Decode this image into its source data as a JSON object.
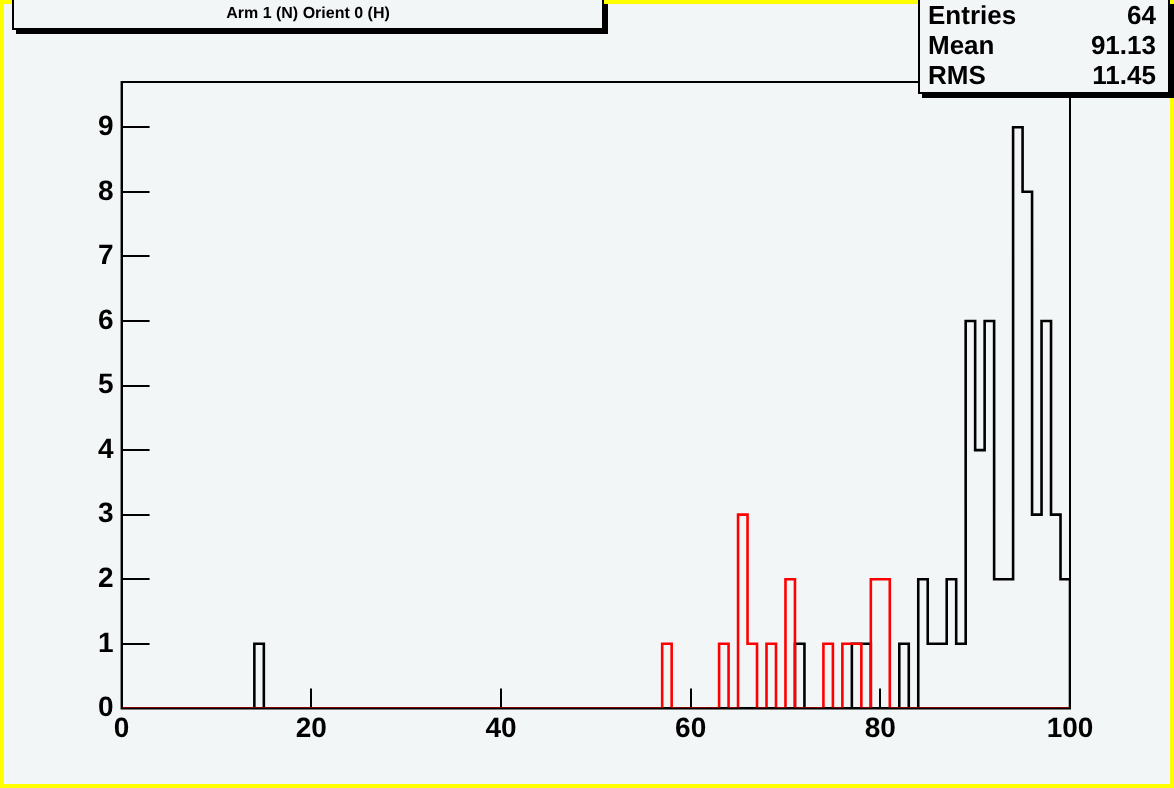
{
  "chart_data": {
    "type": "histogram",
    "title": "Arm 1 (N) Orient 0 (H)",
    "bins": [
      0,
      1,
      2,
      3,
      4,
      5,
      6,
      7,
      8,
      9,
      10,
      11,
      12,
      13,
      14,
      15,
      16,
      17,
      18,
      19,
      20,
      21,
      22,
      23,
      24,
      25,
      26,
      27,
      28,
      29,
      30,
      31,
      32,
      33,
      34,
      35,
      36,
      37,
      38,
      39,
      40,
      41,
      42,
      43,
      44,
      45,
      46,
      47,
      48,
      49,
      50,
      51,
      52,
      53,
      54,
      55,
      56,
      57,
      58,
      59,
      60,
      61,
      62,
      63,
      64,
      65,
      66,
      67,
      68,
      69,
      70,
      71,
      72,
      73,
      74,
      75,
      76,
      77,
      78,
      79,
      80,
      81,
      82,
      83,
      84,
      85,
      86,
      87,
      88,
      89,
      90,
      91,
      92,
      93,
      94,
      95,
      96,
      97,
      98,
      99,
      100
    ],
    "series": [
      {
        "color": "#000000",
        "values": [
          0,
          0,
          0,
          0,
          0,
          0,
          0,
          0,
          0,
          0,
          0,
          0,
          0,
          0,
          1,
          0,
          0,
          0,
          0,
          0,
          0,
          0,
          0,
          0,
          0,
          0,
          0,
          0,
          0,
          0,
          0,
          0,
          0,
          0,
          0,
          0,
          0,
          0,
          0,
          0,
          0,
          0,
          0,
          0,
          0,
          0,
          0,
          0,
          0,
          0,
          0,
          0,
          0,
          0,
          0,
          0,
          0,
          0,
          0,
          0,
          0,
          0,
          0,
          0,
          0,
          0,
          0,
          0,
          0,
          0,
          0,
          1,
          0,
          0,
          0,
          0,
          0,
          1,
          1,
          0,
          0,
          0,
          1,
          0,
          2,
          1,
          1,
          2,
          1,
          6,
          4,
          6,
          2,
          2,
          9,
          8,
          3,
          6,
          3,
          2
        ]
      },
      {
        "color": "#ff0000",
        "values": [
          0,
          0,
          0,
          0,
          0,
          0,
          0,
          0,
          0,
          0,
          0,
          0,
          0,
          0,
          0,
          0,
          0,
          0,
          0,
          0,
          0,
          0,
          0,
          0,
          0,
          0,
          0,
          0,
          0,
          0,
          0,
          0,
          0,
          0,
          0,
          0,
          0,
          0,
          0,
          0,
          0,
          0,
          0,
          0,
          0,
          0,
          0,
          0,
          0,
          0,
          0,
          0,
          0,
          0,
          0,
          0,
          0,
          1,
          0,
          0,
          0,
          0,
          0,
          1,
          0,
          3,
          1,
          0,
          1,
          0,
          2,
          0,
          0,
          0,
          1,
          0,
          1,
          1,
          0,
          2,
          2,
          0,
          0,
          0,
          0,
          0,
          0,
          0,
          0,
          0,
          0,
          0,
          0,
          0,
          0,
          0,
          0,
          0,
          0,
          0
        ]
      }
    ],
    "xlim": [
      0,
      100
    ],
    "xticks": [
      0,
      20,
      40,
      60,
      80,
      100
    ],
    "ylim": [
      0,
      9.7
    ],
    "yticks": [
      0,
      1,
      2,
      3,
      4,
      5,
      6,
      7,
      8,
      9
    ],
    "grid": false,
    "legend": false,
    "annotations": [
      "Entries 64",
      "Mean 91.13",
      "RMS 11.45"
    ]
  }
}
